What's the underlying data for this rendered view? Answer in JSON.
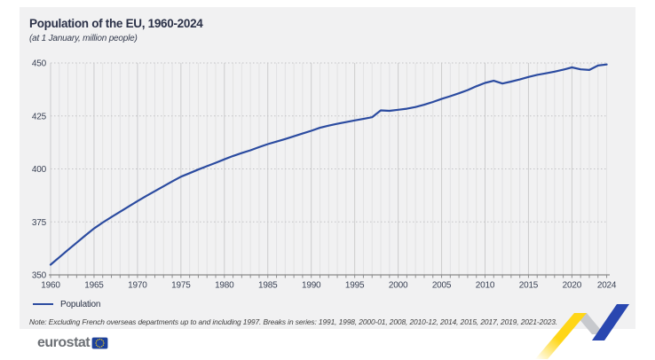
{
  "header": {
    "title": "Population of the EU, 1960-2024",
    "subtitle": "(at 1 January, million people)"
  },
  "legend": {
    "label": "Population"
  },
  "note": "Note: Excluding French overseas departments up to and including 1997. Breaks in series: 1991, 1998, 2000-01, 2008, 2010-12, 2014, 2015, 2017, 2019, 2021-2023.",
  "logo": {
    "text": "eurostat"
  },
  "colors": {
    "line": "#2b4ba0",
    "panel": "#f1f1f2",
    "grid_year": "#e2e2e3",
    "grid_5year": "#cccccd",
    "grid_dotted": "#c4c4c6",
    "axis": "#6e6e6e",
    "tick": "#8f8f90",
    "zigzag_yellow": "#ffd617",
    "zigzag_gray": "#c7c9cd",
    "zigzag_blue": "#2947b0",
    "flag_blue": "#1c409c",
    "flag_star": "#ffd617"
  },
  "chart_data": {
    "type": "line",
    "title": "Population of the EU, 1960-2024",
    "subtitle": "(at 1 January, million people)",
    "xlabel": "",
    "ylabel": "",
    "ylim": [
      350,
      450
    ],
    "yticks": [
      350,
      375,
      400,
      425,
      450
    ],
    "xticks": [
      1960,
      1965,
      1970,
      1975,
      1980,
      1985,
      1990,
      1995,
      2000,
      2005,
      2010,
      2015,
      2020,
      2024
    ],
    "grid": "vertical solid per year, horizontal dotted at y ticks",
    "legend_position": "bottom-left",
    "x": [
      1960,
      1961,
      1962,
      1963,
      1964,
      1965,
      1966,
      1967,
      1968,
      1969,
      1970,
      1971,
      1972,
      1973,
      1974,
      1975,
      1976,
      1977,
      1978,
      1979,
      1980,
      1981,
      1982,
      1983,
      1984,
      1985,
      1986,
      1987,
      1988,
      1989,
      1990,
      1991,
      1992,
      1993,
      1994,
      1995,
      1996,
      1997,
      1998,
      1999,
      2000,
      2001,
      2002,
      2003,
      2004,
      2005,
      2006,
      2007,
      2008,
      2009,
      2010,
      2011,
      2012,
      2013,
      2014,
      2015,
      2016,
      2017,
      2018,
      2019,
      2020,
      2021,
      2022,
      2023,
      2024
    ],
    "series": [
      {
        "name": "Population",
        "color": "#2b4ba0",
        "values": [
          354.8,
          358.3,
          361.8,
          365.2,
          368.6,
          371.9,
          374.7,
          377.3,
          379.8,
          382.3,
          384.8,
          387.2,
          389.5,
          391.8,
          394.1,
          396.3,
          398.0,
          399.7,
          401.3,
          402.9,
          404.5,
          406.1,
          407.5,
          408.8,
          410.3,
          411.7,
          412.9,
          414.1,
          415.4,
          416.7,
          418.0,
          419.4,
          420.4,
          421.3,
          422.1,
          422.9,
          423.6,
          424.4,
          427.6,
          427.4,
          427.9,
          428.4,
          429.2,
          430.3,
          431.6,
          433.0,
          434.3,
          435.7,
          437.2,
          439.0,
          440.6,
          441.6,
          440.3,
          441.2,
          442.2,
          443.4,
          444.4,
          445.1,
          445.9,
          446.8,
          447.9,
          447.0,
          446.7,
          448.8,
          449.3
        ]
      }
    ]
  }
}
